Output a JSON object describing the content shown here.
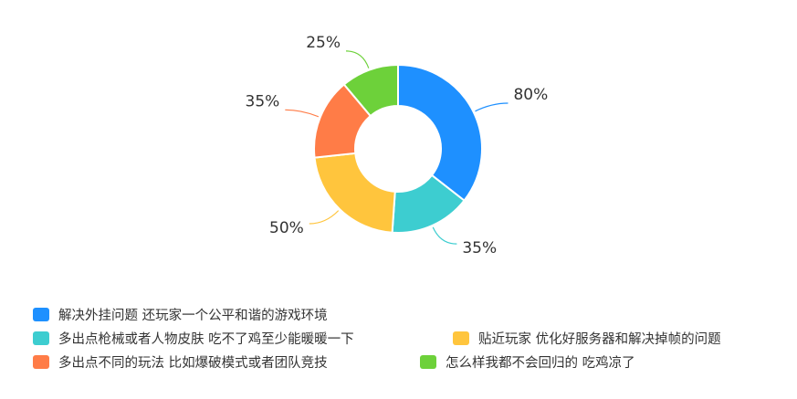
{
  "chart_data": {
    "type": "pie",
    "donut": true,
    "title": "",
    "legend_position": "bottom-left",
    "slices": [
      {
        "name": "解决外挂问题 还玩家一个公平和谐的游戏环境",
        "value": 80,
        "label": "80%",
        "color": "#1e90ff"
      },
      {
        "name": "多出点枪械或者人物皮肤 吃不了鸡至少能暖暖一下",
        "value": 35,
        "label": "35%",
        "color": "#3dcdd0"
      },
      {
        "name": "贴近玩家 优化好服务器和解决掉帧的问题",
        "value": 50,
        "label": "50%",
        "color": "#ffc53d"
      },
      {
        "name": "多出点不同的玩法 比如爆破模式或者团队竞技",
        "value": 35,
        "label": "35%",
        "color": "#ff7c47"
      },
      {
        "name": "怎么样我都不会回归的 吃鸡凉了",
        "value": 25,
        "label": "25%",
        "color": "#6dd13a"
      }
    ]
  }
}
